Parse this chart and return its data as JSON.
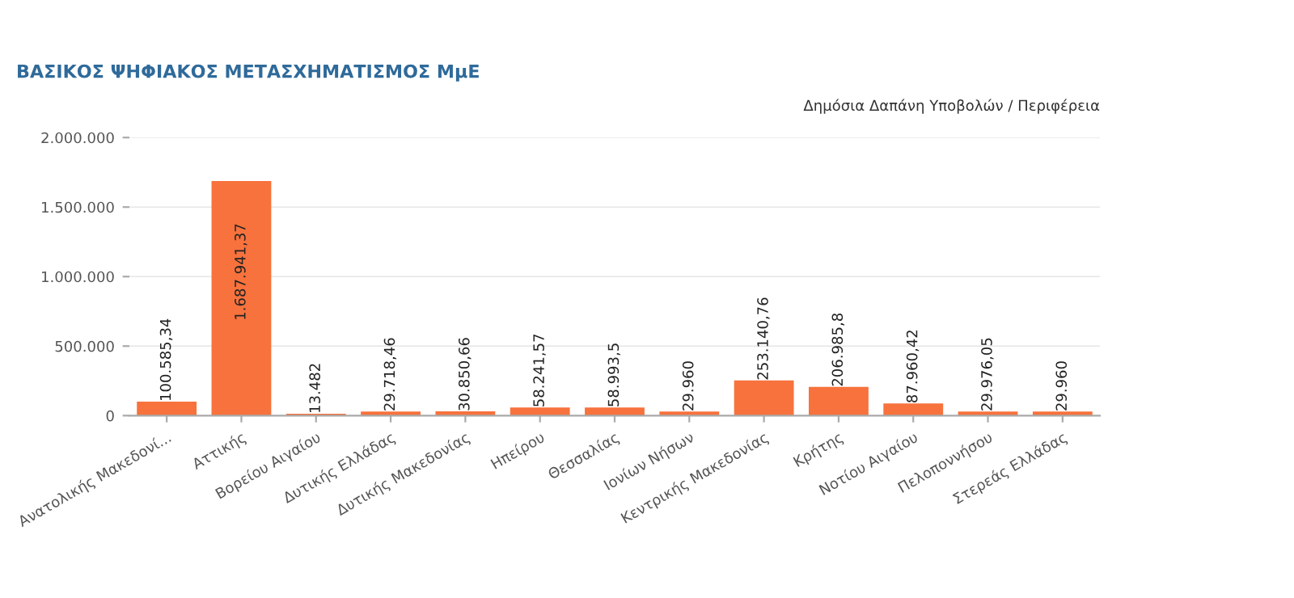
{
  "chart_data": {
    "type": "bar",
    "title": "ΒΑΣΙΚΟΣ ΨΗΦΙΑΚΟΣ ΜΕΤΑΣΧΗΜΑΤΙΣΜΟΣ ΜμΕ",
    "subtitle": "Δημόσια Δαπάνη Υποβολών / Περιφέρεια",
    "categories": [
      "Ανατολικής Μακεδονί...",
      "Αττικής",
      "Βορείου Αιγαίου",
      "Δυτικής Ελλάδας",
      "Δυτικής Μακεδονίας",
      "Ηπείρου",
      "Θεσσαλίας",
      "Ιονίων Νήσων",
      "Κεντρικής Μακεδονίας",
      "Κρήτης",
      "Νοτίου Αιγαίου",
      "Πελοποννήσου",
      "Στερεάς Ελλάδας"
    ],
    "values": [
      100585.34,
      1687941.37,
      13482,
      29718.46,
      30850.66,
      58241.57,
      58993.5,
      29960,
      253140.76,
      206985.8,
      87960.42,
      29976.05,
      29960
    ],
    "value_labels": [
      "100.585,34",
      "1.687.941,37",
      "13.482",
      "29.718,46",
      "30.850,66",
      "58.241,57",
      "58.993,5",
      "29.960",
      "253.140,76",
      "206.985,8",
      "87.960,42",
      "29.976,05",
      "29.960"
    ],
    "color": "#f7723d",
    "ylim": [
      0,
      2000000
    ],
    "yticks": [
      {
        "value": 0,
        "label": "0"
      },
      {
        "value": 500000,
        "label": "500.000"
      },
      {
        "value": 1000000,
        "label": "1.000.000"
      },
      {
        "value": 1500000,
        "label": "1.500.000"
      },
      {
        "value": 2000000,
        "label": "2.000.000"
      }
    ],
    "grid": "y",
    "legend": false
  }
}
